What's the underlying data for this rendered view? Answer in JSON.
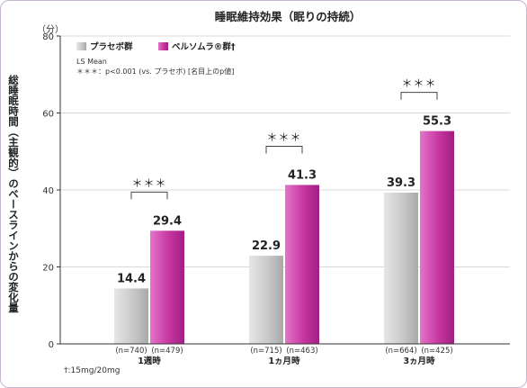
{
  "chart_data": {
    "type": "bar",
    "title": "睡眠維持効果（眠りの持続）",
    "ylabel": "総睡眠時間（主観的）のベースラインからの変化量",
    "y_unit": "（分）",
    "ylim": [
      0,
      80
    ],
    "yticks": [
      "0",
      "20",
      "40",
      "60",
      "80"
    ],
    "grid": true,
    "legend_position": "top-left",
    "categories": [
      "1週時",
      "1ヵ月時",
      "3ヵ月時"
    ],
    "series": [
      {
        "name": "プラセボ群",
        "color": "#c8c8c8",
        "values": [
          14.4,
          22.9,
          39.3
        ],
        "labels": [
          "14.4",
          "22.9",
          "39.3"
        ],
        "n": [
          "(n=740)",
          "(n=715)",
          "(n=664)"
        ]
      },
      {
        "name": "ベルソムラ®群†",
        "color": "#c0339f",
        "values": [
          29.4,
          41.3,
          55.3
        ],
        "labels": [
          "29.4",
          "41.3",
          "55.3"
        ],
        "n": [
          "(n=479)",
          "(n=463)",
          "(n=425)"
        ]
      }
    ],
    "significance": [
      "＊＊＊",
      "＊＊＊",
      "＊＊＊"
    ],
    "notes": [
      "LS Mean",
      "＊＊＊：p<0.001 (vs. プラセボ) [名目上のp値]"
    ],
    "footnote": "†:15mg/20mg"
  }
}
